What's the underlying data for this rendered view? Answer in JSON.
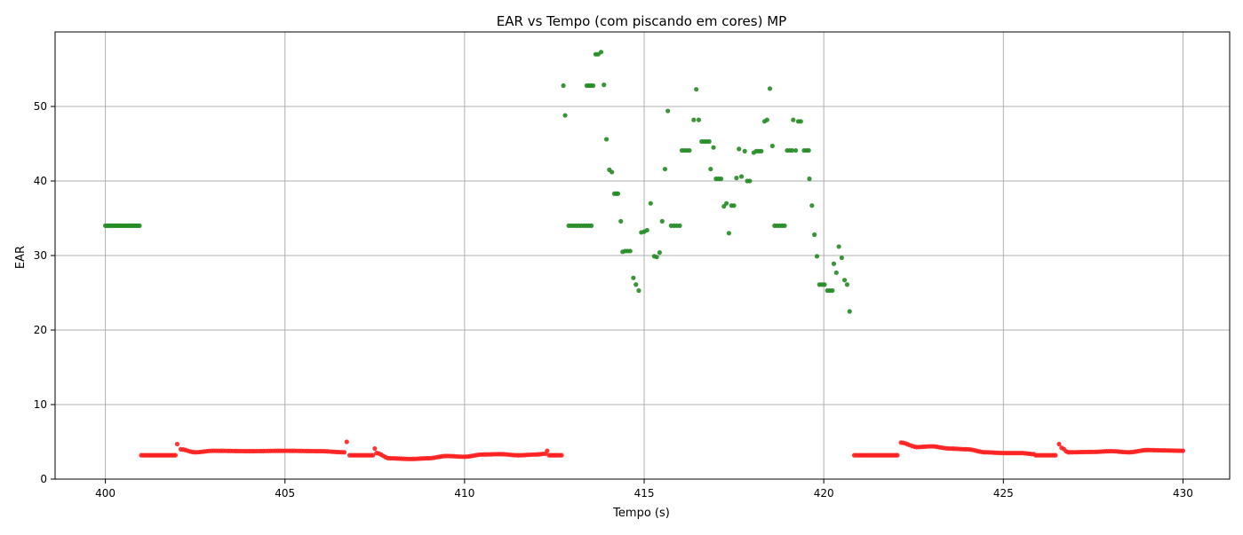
{
  "chart_data": {
    "type": "scatter",
    "title": "EAR vs Tempo (com piscando em cores) MP",
    "xlabel": "Tempo (s)",
    "ylabel": "EAR",
    "xlim": [
      398.6,
      431.3
    ],
    "ylim": [
      0,
      60
    ],
    "xticks": [
      400,
      405,
      410,
      415,
      420,
      425,
      430
    ],
    "yticks": [
      0,
      10,
      20,
      30,
      40,
      50
    ],
    "grid": true,
    "legend": "none",
    "colors": {
      "green": "#228B22",
      "red": "#FF2020",
      "grid": "#b0b0b0",
      "axis": "#000000"
    },
    "series": [
      {
        "color": "green",
        "segments": [
          {
            "from": 400.0,
            "to": 400.95,
            "n": 20,
            "y": 34.0
          }
        ],
        "points": [
          [
            412.75,
            52.8
          ],
          [
            412.8,
            48.8
          ],
          [
            412.9,
            34.0
          ],
          [
            412.97,
            34.0
          ],
          [
            413.04,
            34.0
          ],
          [
            413.11,
            34.0
          ],
          [
            413.18,
            34.0
          ],
          [
            413.25,
            34.0
          ],
          [
            413.32,
            34.0
          ],
          [
            413.39,
            34.0
          ],
          [
            413.46,
            34.0
          ],
          [
            413.53,
            34.0
          ],
          [
            413.4,
            52.8
          ],
          [
            413.46,
            52.8
          ],
          [
            413.52,
            52.8
          ],
          [
            413.58,
            52.8
          ],
          [
            413.65,
            57.0
          ],
          [
            413.72,
            57.0
          ],
          [
            413.8,
            57.3
          ],
          [
            413.88,
            52.9
          ],
          [
            413.95,
            45.6
          ],
          [
            414.03,
            41.5
          ],
          [
            414.1,
            41.2
          ],
          [
            414.17,
            38.3
          ],
          [
            414.22,
            38.3
          ],
          [
            414.27,
            38.3
          ],
          [
            414.35,
            34.6
          ],
          [
            414.4,
            30.5
          ],
          [
            414.47,
            30.6
          ],
          [
            414.54,
            30.6
          ],
          [
            414.61,
            30.6
          ],
          [
            414.7,
            27.0
          ],
          [
            414.77,
            26.1
          ],
          [
            414.85,
            25.3
          ],
          [
            414.92,
            33.1
          ],
          [
            415.0,
            33.2
          ],
          [
            415.08,
            33.4
          ],
          [
            415.18,
            37.0
          ],
          [
            415.28,
            29.9
          ],
          [
            415.35,
            29.8
          ],
          [
            415.43,
            30.4
          ],
          [
            415.5,
            34.6
          ],
          [
            415.58,
            41.6
          ],
          [
            415.66,
            49.4
          ],
          [
            415.75,
            34.0
          ],
          [
            415.83,
            34.0
          ],
          [
            415.91,
            34.0
          ],
          [
            415.99,
            34.0
          ],
          [
            416.05,
            44.1
          ],
          [
            416.12,
            44.1
          ],
          [
            416.19,
            44.1
          ],
          [
            416.26,
            44.1
          ],
          [
            416.38,
            48.2
          ],
          [
            416.45,
            52.3
          ],
          [
            416.52,
            48.2
          ],
          [
            416.6,
            45.3
          ],
          [
            416.67,
            45.3
          ],
          [
            416.74,
            45.3
          ],
          [
            416.81,
            45.3
          ],
          [
            416.85,
            41.6
          ],
          [
            416.93,
            44.5
          ],
          [
            417.0,
            40.3
          ],
          [
            417.07,
            40.3
          ],
          [
            417.14,
            40.3
          ],
          [
            417.22,
            36.6
          ],
          [
            417.29,
            37.0
          ],
          [
            417.36,
            33.0
          ],
          [
            417.43,
            36.7
          ],
          [
            417.5,
            36.7
          ],
          [
            417.57,
            40.4
          ],
          [
            417.64,
            44.3
          ],
          [
            417.71,
            40.6
          ],
          [
            417.8,
            44.0
          ],
          [
            417.87,
            40.0
          ],
          [
            417.94,
            40.0
          ],
          [
            418.05,
            43.8
          ],
          [
            418.12,
            44.0
          ],
          [
            418.19,
            44.0
          ],
          [
            418.26,
            44.0
          ],
          [
            418.35,
            48.0
          ],
          [
            418.42,
            48.2
          ],
          [
            418.5,
            52.4
          ],
          [
            418.57,
            44.7
          ],
          [
            418.63,
            34.0
          ],
          [
            418.7,
            34.0
          ],
          [
            418.77,
            34.0
          ],
          [
            418.84,
            34.0
          ],
          [
            418.91,
            34.0
          ],
          [
            418.98,
            44.1
          ],
          [
            419.05,
            44.1
          ],
          [
            419.12,
            44.1
          ],
          [
            419.15,
            48.2
          ],
          [
            419.22,
            44.1
          ],
          [
            419.29,
            48.0
          ],
          [
            419.36,
            48.0
          ],
          [
            419.45,
            44.1
          ],
          [
            419.52,
            44.1
          ],
          [
            419.58,
            44.1
          ],
          [
            419.6,
            40.3
          ],
          [
            419.67,
            36.7
          ],
          [
            419.74,
            32.8
          ],
          [
            419.81,
            29.9
          ],
          [
            419.88,
            26.1
          ],
          [
            419.95,
            26.1
          ],
          [
            420.02,
            26.1
          ],
          [
            420.1,
            25.3
          ],
          [
            420.17,
            25.3
          ],
          [
            420.24,
            25.3
          ],
          [
            420.28,
            28.9
          ],
          [
            420.35,
            27.7
          ],
          [
            420.42,
            31.2
          ],
          [
            420.5,
            29.7
          ],
          [
            420.58,
            26.7
          ],
          [
            420.65,
            26.1
          ],
          [
            420.72,
            22.5
          ]
        ]
      },
      {
        "color": "red",
        "segments": [
          {
            "from": 401.0,
            "to": 401.95,
            "n": 20,
            "y": 3.2
          },
          {
            "from": 406.8,
            "to": 407.45,
            "n": 13,
            "y": 3.2
          },
          {
            "from": 412.35,
            "to": 412.7,
            "n": 8,
            "y": 3.2
          },
          {
            "from": 420.85,
            "to": 422.05,
            "n": 24,
            "y": 3.2
          },
          {
            "from": 425.9,
            "to": 426.45,
            "n": 11,
            "y": 3.2
          }
        ],
        "points": [
          [
            402.0,
            4.7
          ],
          [
            406.72,
            5.0
          ],
          [
            407.5,
            4.1
          ],
          [
            412.3,
            3.8
          ],
          [
            426.55,
            4.7
          ]
        ],
        "curves": [
          {
            "from": 402.1,
            "to": 406.65,
            "n": 70,
            "anchors": [
              [
                402.1,
                4.0
              ],
              [
                402.5,
                3.6
              ],
              [
                403.0,
                3.8
              ],
              [
                404.0,
                3.75
              ],
              [
                405.0,
                3.8
              ],
              [
                406.0,
                3.75
              ],
              [
                406.65,
                3.6
              ]
            ]
          },
          {
            "from": 407.55,
            "to": 412.25,
            "n": 75,
            "anchors": [
              [
                407.55,
                3.5
              ],
              [
                407.9,
                2.8
              ],
              [
                408.5,
                2.7
              ],
              [
                409.0,
                2.8
              ],
              [
                409.5,
                3.1
              ],
              [
                410.0,
                3.0
              ],
              [
                410.5,
                3.3
              ],
              [
                411.0,
                3.35
              ],
              [
                411.5,
                3.2
              ],
              [
                412.0,
                3.3
              ],
              [
                412.25,
                3.4
              ]
            ]
          },
          {
            "from": 422.15,
            "to": 425.85,
            "n": 60,
            "anchors": [
              [
                422.15,
                4.9
              ],
              [
                422.6,
                4.3
              ],
              [
                423.0,
                4.4
              ],
              [
                423.5,
                4.1
              ],
              [
                424.0,
                4.0
              ],
              [
                424.5,
                3.6
              ],
              [
                425.0,
                3.5
              ],
              [
                425.5,
                3.5
              ],
              [
                425.85,
                3.35
              ]
            ]
          },
          {
            "from": 426.62,
            "to": 430.0,
            "n": 55,
            "anchors": [
              [
                426.62,
                4.2
              ],
              [
                426.8,
                3.6
              ],
              [
                427.5,
                3.65
              ],
              [
                428.0,
                3.75
              ],
              [
                428.5,
                3.6
              ],
              [
                429.0,
                3.9
              ],
              [
                429.5,
                3.85
              ],
              [
                430.0,
                3.8
              ]
            ]
          }
        ]
      }
    ]
  }
}
